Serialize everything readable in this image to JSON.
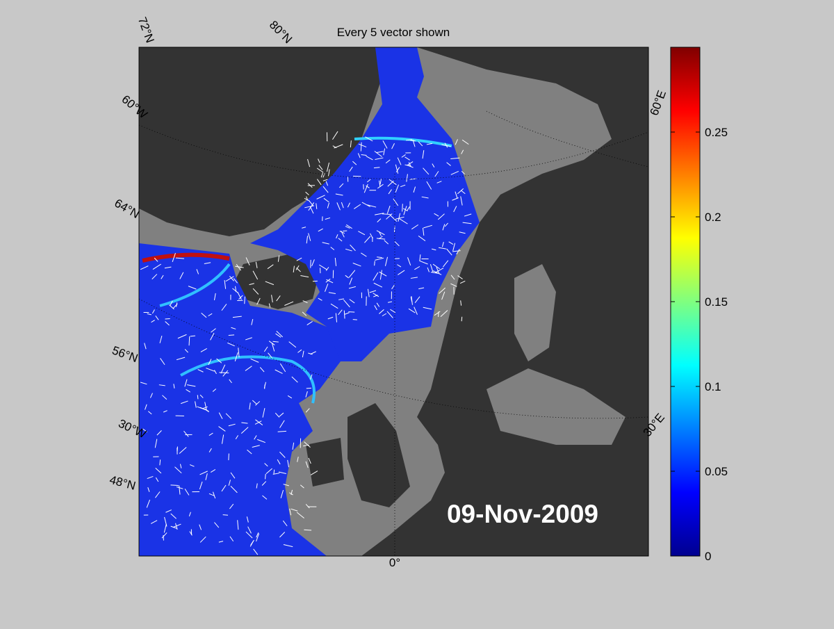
{
  "title": "Every 5 vector shown",
  "date_label": "09-Nov-2009",
  "graticule_labels": [
    "72°N",
    "80°N",
    "60°W",
    "64°N",
    "56°N",
    "30°W",
    "48°N",
    "0°",
    "30°E",
    "60°E"
  ],
  "colorbar": {
    "lim": [
      0,
      0.3
    ],
    "ticks": [
      0,
      0.05,
      0.1,
      0.15,
      0.2,
      0.25
    ]
  }
}
